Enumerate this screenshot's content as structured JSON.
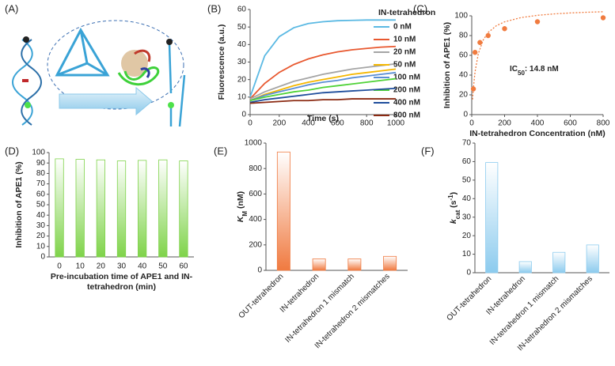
{
  "chart_data": [
    {
      "type": "schematic",
      "panel_label": "(A)"
    },
    {
      "type": "line",
      "panel_label": "(B)",
      "xlabel": "Time (s)",
      "ylabel": "Fluorescence (a.u.)",
      "legend_title": "IN-tetrahedron",
      "legend": "upper right",
      "x": [
        0,
        100,
        200,
        300,
        400,
        500,
        600,
        700,
        800,
        900,
        1000
      ],
      "xlim": [
        0,
        1000
      ],
      "xticks": [
        0,
        200,
        400,
        600,
        800,
        1000
      ],
      "ylim": [
        0,
        60
      ],
      "yticks": [
        0,
        10,
        20,
        30,
        40,
        50,
        60
      ],
      "series": [
        {
          "name": "0 nM",
          "color": "#5bb9e3",
          "values": [
            10,
            33.6,
            44.5,
            49.6,
            52,
            53,
            53.6,
            53.8,
            54,
            54,
            54
          ]
        },
        {
          "name": "10 nM",
          "color": "#e8582f",
          "values": [
            9,
            17.8,
            24.1,
            28.6,
            31.8,
            34.1,
            35.8,
            37,
            37.8,
            38.5,
            38.9
          ]
        },
        {
          "name": "20 nM",
          "color": "#a5a5a5",
          "values": [
            9,
            13,
            16,
            19,
            21,
            23,
            24.5,
            26,
            27,
            28,
            29
          ]
        },
        {
          "name": "50 nM",
          "color": "#f5b700",
          "values": [
            8,
            11.5,
            14,
            16.5,
            18.5,
            20,
            21.5,
            23,
            24,
            25,
            26
          ]
        },
        {
          "name": "100 nM",
          "color": "#5b8fd4",
          "values": [
            8,
            11,
            13,
            15,
            17,
            18.5,
            19.5,
            21,
            22,
            23,
            24
          ]
        },
        {
          "name": "200 nM",
          "color": "#4fd237",
          "values": [
            8,
            10,
            11.5,
            13,
            14,
            15.5,
            16.5,
            17.5,
            18.5,
            19.5,
            20.5
          ]
        },
        {
          "name": "400 nM",
          "color": "#1f4e9c",
          "values": [
            7,
            8.5,
            9.5,
            10.5,
            11.5,
            12.5,
            13,
            13.5,
            14,
            14.5,
            15
          ]
        },
        {
          "name": "800 nM",
          "color": "#8b2a12",
          "values": [
            6.5,
            7,
            7.5,
            8,
            8,
            8.5,
            8.5,
            9,
            9,
            9,
            9
          ]
        }
      ]
    },
    {
      "type": "scatter",
      "panel_label": "(C)",
      "xlabel": "IN-tetrahedron Concentration (nM)",
      "ylabel": "Inhibition of APE1 (%)",
      "annotation": [
        {
          "text": "IC"
        },
        {
          "sub": "50"
        },
        {
          "text": ": 14.8 nM"
        }
      ],
      "xlim": [
        0,
        800
      ],
      "xticks": [
        0,
        200,
        400,
        600,
        800
      ],
      "ylim": [
        0,
        100
      ],
      "yticks": [
        0,
        20,
        40,
        60,
        80,
        100
      ],
      "color": "#f07b3f",
      "x": [
        10,
        20,
        50,
        100,
        200,
        400,
        800
      ],
      "values": [
        26,
        63,
        73,
        80,
        87,
        94,
        98
      ],
      "fit": {
        "color": "#f07b3f",
        "x": [
          5,
          10,
          20,
          40,
          70,
          100,
          150,
          200,
          300,
          400,
          500,
          600,
          700,
          800
        ],
        "values": [
          15.4,
          27,
          43.2,
          61.7,
          75.6,
          83.1,
          90,
          93.9,
          98.2,
          100.5,
          101.9,
          102.9,
          103.6,
          104.1
        ]
      }
    },
    {
      "type": "bar",
      "panel_label": "(D)",
      "xlabel": [
        "Pre-incubation time of APE1 and IN-",
        "tetrahedron (min)"
      ],
      "ylabel": [
        {
          "text": "Inhibition of APE1 (%)"
        }
      ],
      "categories": [
        "0",
        "10",
        "20",
        "30",
        "40",
        "50",
        "60"
      ],
      "values": [
        94,
        93.5,
        93,
        92,
        92.5,
        93,
        92
      ],
      "ylim": [
        0,
        100
      ],
      "yticks": [
        0,
        10,
        20,
        30,
        40,
        50,
        60,
        70,
        80,
        90,
        100
      ],
      "color": "#7fd34a"
    },
    {
      "type": "bar",
      "panel_label": "(E)",
      "ylabel": [
        {
          "text": "K"
        },
        {
          "sub": "M"
        },
        {
          "text": " (nM)"
        }
      ],
      "categories": [
        "OUT-tetrahedron",
        "IN-tetrahedron",
        "IN-tetrahedron 1 mismatch",
        "IN-tetrahedron 2 mismatches"
      ],
      "values": [
        930,
        90,
        90,
        110
      ],
      "ylim": [
        0,
        1000
      ],
      "yticks": [
        0,
        200,
        400,
        600,
        800,
        1000
      ],
      "color": "#f07a40"
    },
    {
      "type": "bar",
      "panel_label": "(F)",
      "ylabel": [
        {
          "text": "k"
        },
        {
          "sub": "cat"
        },
        {
          "text": " (s"
        },
        {
          "sup": "-1"
        },
        {
          "text": ")"
        }
      ],
      "categories": [
        "OUT-tetrahedron",
        "IN-tetrahedron",
        "IN-tetrahedron 1 mismatch",
        "IN-tetrahedron 2 mismatches"
      ],
      "values": [
        59.5,
        6,
        11,
        15
      ],
      "ylim": [
        0,
        70
      ],
      "yticks": [
        0,
        10,
        20,
        30,
        40,
        50,
        60,
        70
      ],
      "color": "#8ccbee"
    }
  ]
}
